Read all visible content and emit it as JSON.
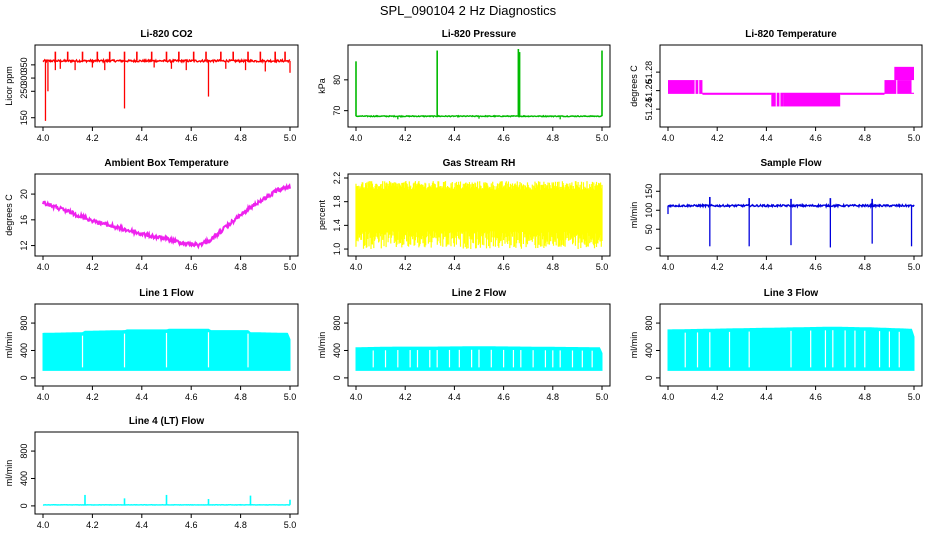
{
  "title": "SPL_090104  2 Hz Diagnostics",
  "chart_data": [
    {
      "type": "line",
      "title": "Li-820 CO2",
      "ylabel": "Licor ppm",
      "color": "#ff0000",
      "xlim": [
        4.0,
        5.0
      ],
      "ylim": [
        130,
        410
      ],
      "xticks": [
        "4.0",
        "4.2",
        "4.4",
        "4.6",
        "4.8",
        "5.0"
      ],
      "yticks": [
        "150",
        "250",
        "300",
        "350"
      ],
      "series": [
        {
          "pattern": "spikes",
          "baseline": 365,
          "noise": 8,
          "up": [
            [
              4.05,
              400
            ],
            [
              4.1,
              400
            ],
            [
              4.16,
              400
            ],
            [
              4.22,
              400
            ],
            [
              4.27,
              400
            ],
            [
              4.33,
              400
            ],
            [
              4.38,
              400
            ],
            [
              4.44,
              400
            ],
            [
              4.5,
              400
            ],
            [
              4.55,
              400
            ],
            [
              4.61,
              400
            ],
            [
              4.66,
              400
            ],
            [
              4.72,
              400
            ],
            [
              4.77,
              400
            ],
            [
              4.83,
              400
            ],
            [
              4.88,
              400
            ],
            [
              4.94,
              400
            ],
            [
              4.98,
              400
            ]
          ],
          "down": [
            [
              4.01,
              138
            ],
            [
              4.02,
              250
            ],
            [
              4.05,
              330
            ],
            [
              4.07,
              335
            ],
            [
              4.13,
              330
            ],
            [
              4.2,
              340
            ],
            [
              4.25,
              330
            ],
            [
              4.33,
              185
            ],
            [
              4.45,
              340
            ],
            [
              4.52,
              335
            ],
            [
              4.58,
              330
            ],
            [
              4.67,
              230
            ],
            [
              4.74,
              335
            ],
            [
              4.82,
              330
            ],
            [
              4.9,
              325
            ],
            [
              5.0,
              320
            ]
          ]
        }
      ]
    },
    {
      "type": "line",
      "title": "Li-820 Pressure",
      "ylabel": "kPa",
      "color": "#00bb00",
      "xlim": [
        4.0,
        5.0
      ],
      "ylim": [
        66,
        90
      ],
      "xticks": [
        "4.0",
        "4.2",
        "4.4",
        "4.6",
        "4.8",
        "5.0"
      ],
      "yticks": [
        "70",
        "80"
      ],
      "series": [
        {
          "pattern": "spikes",
          "baseline": 68.2,
          "noise": 0.3,
          "up": [
            [
              4.0,
              86
            ],
            [
              4.33,
              89.5
            ],
            [
              4.66,
              90
            ],
            [
              4.665,
              89
            ],
            [
              5.0,
              89.5
            ]
          ],
          "down": [
            [
              4.17,
              67.2
            ],
            [
              4.5,
              67.4
            ],
            [
              4.83,
              67.2
            ]
          ]
        }
      ]
    },
    {
      "type": "line",
      "title": "Li-820 Temperature",
      "ylabel": "degrees C",
      "color": "#ff00ff",
      "xlim": [
        4.0,
        5.0
      ],
      "ylim": [
        51.225,
        51.305
      ],
      "xticks": [
        "4.0",
        "4.2",
        "4.4",
        "4.6",
        "4.8",
        "5.0"
      ],
      "yticks": [
        "51.24",
        "51.26",
        "51.28"
      ],
      "series": [
        {
          "pattern": "levels",
          "base": 51.2571,
          "blocks": [
            [
              4.0,
              4.14,
              51.2571,
              51.2714
            ],
            [
              4.14,
              4.42,
              51.2571,
              51.2571
            ],
            [
              4.42,
              4.47,
              51.2429,
              51.2571
            ],
            [
              4.47,
              4.7,
              51.2429,
              51.2571
            ],
            [
              4.7,
              4.88,
              51.2571,
              51.2571
            ],
            [
              4.88,
              4.99,
              51.2571,
              51.2714
            ],
            [
              4.92,
              5.0,
              51.2714,
              51.2857
            ]
          ]
        }
      ]
    },
    {
      "type": "line",
      "title": "Ambient Box Temperature",
      "ylabel": "degrees C",
      "color": "#ee22ee",
      "xlim": [
        4.0,
        5.0
      ],
      "ylim": [
        11,
        22.5
      ],
      "xticks": [
        "4.0",
        "4.2",
        "4.4",
        "4.6",
        "4.8",
        "5.0"
      ],
      "yticks": [
        "12",
        "16",
        "20"
      ],
      "series": [
        {
          "pattern": "curve",
          "noise": 0.6,
          "points": [
            [
              4.0,
              19.0
            ],
            [
              4.1,
              17.6
            ],
            [
              4.2,
              16.2
            ],
            [
              4.3,
              15.1
            ],
            [
              4.4,
              14.1
            ],
            [
              4.5,
              13.3
            ],
            [
              4.58,
              12.6
            ],
            [
              4.63,
              12.4
            ],
            [
              4.68,
              13.2
            ],
            [
              4.75,
              15.5
            ],
            [
              4.85,
              18.5
            ],
            [
              4.95,
              20.9
            ],
            [
              5.0,
              21.4
            ]
          ]
        }
      ]
    },
    {
      "type": "line",
      "title": "Gas Stream RH",
      "ylabel": "percent",
      "color": "#ffff00",
      "xlim": [
        4.0,
        5.0
      ],
      "ylim": [
        0.95,
        2.2
      ],
      "xticks": [
        "4.0",
        "4.2",
        "4.4",
        "4.6",
        "4.8",
        "5.0"
      ],
      "yticks": [
        "1.0",
        "1.4",
        "1.8",
        "2.2"
      ],
      "series": [
        {
          "pattern": "band",
          "min": 1.0,
          "max": 2.15,
          "core": [
            1.3,
            2.0
          ]
        }
      ]
    },
    {
      "type": "line",
      "title": "Sample Flow",
      "ylabel": "ml/min",
      "color": "#0000dd",
      "xlim": [
        4.0,
        5.0
      ],
      "ylim": [
        -10,
        185
      ],
      "xticks": [
        "4.0",
        "4.2",
        "4.4",
        "4.6",
        "4.8",
        "5.0"
      ],
      "yticks": [
        "0",
        "50",
        "100",
        "150"
      ],
      "series": [
        {
          "pattern": "spikes",
          "baseline": 112,
          "noise": 5,
          "up": [
            [
              4.17,
              135
            ],
            [
              4.33,
              132
            ],
            [
              4.5,
              130
            ],
            [
              4.66,
              132
            ],
            [
              4.83,
              130
            ]
          ],
          "down": [
            [
              4.0,
              90
            ],
            [
              4.17,
              5
            ],
            [
              4.33,
              5
            ],
            [
              4.5,
              8
            ],
            [
              4.66,
              2
            ],
            [
              4.83,
              12
            ],
            [
              4.99,
              5
            ]
          ]
        }
      ]
    },
    {
      "type": "line",
      "title": "Line 1 Flow",
      "ylabel": "ml/min",
      "color": "#00ffff",
      "xlim": [
        4.0,
        5.0
      ],
      "ylim": [
        -60,
        1020
      ],
      "xticks": [
        "4.0",
        "4.2",
        "4.4",
        "4.6",
        "4.8",
        "5.0"
      ],
      "yticks": [
        "0",
        "400",
        "800"
      ],
      "series": [
        {
          "pattern": "fillband",
          "low": 110,
          "top": [
            [
              4.0,
              650
            ],
            [
              4.16,
              660
            ],
            [
              4.17,
              680
            ],
            [
              4.33,
              690
            ],
            [
              4.34,
              700
            ],
            [
              4.5,
              700
            ],
            [
              4.51,
              710
            ],
            [
              4.67,
              710
            ],
            [
              4.68,
              690
            ],
            [
              4.83,
              690
            ],
            [
              4.84,
              660
            ],
            [
              4.99,
              650
            ],
            [
              5.0,
              560
            ]
          ],
          "gaps": [
            4.16,
            4.33,
            4.5,
            4.67,
            4.83
          ]
        }
      ]
    },
    {
      "type": "line",
      "title": "Line 2 Flow",
      "ylabel": "ml/min",
      "color": "#00ffff",
      "xlim": [
        4.0,
        5.0
      ],
      "ylim": [
        -60,
        1020
      ],
      "xticks": [
        "4.0",
        "4.2",
        "4.4",
        "4.6",
        "4.8",
        "5.0"
      ],
      "yticks": [
        "0",
        "400",
        "800"
      ],
      "series": [
        {
          "pattern": "fillband",
          "low": 110,
          "top": [
            [
              4.0,
              440
            ],
            [
              4.17,
              450
            ],
            [
              4.33,
              450
            ],
            [
              4.5,
              455
            ],
            [
              4.67,
              450
            ],
            [
              4.83,
              445
            ],
            [
              4.99,
              440
            ],
            [
              5.0,
              360
            ]
          ],
          "gaps": [
            4.07,
            4.12,
            4.17,
            4.22,
            4.25,
            4.3,
            4.33,
            4.38,
            4.42,
            4.47,
            4.5,
            4.55,
            4.6,
            4.64,
            4.67,
            4.72,
            4.77,
            4.8,
            4.83,
            4.88,
            4.92,
            4.96
          ]
        }
      ]
    },
    {
      "type": "line",
      "title": "Line 3 Flow",
      "ylabel": "ml/min",
      "color": "#00ffff",
      "xlim": [
        4.0,
        5.0
      ],
      "ylim": [
        -60,
        1020
      ],
      "xticks": [
        "4.0",
        "4.2",
        "4.4",
        "4.6",
        "4.8",
        "5.0"
      ],
      "yticks": [
        "0",
        "400",
        "800"
      ],
      "series": [
        {
          "pattern": "fillband",
          "low": 110,
          "top": [
            [
              4.0,
              700
            ],
            [
              4.17,
              710
            ],
            [
              4.33,
              720
            ],
            [
              4.5,
              730
            ],
            [
              4.67,
              740
            ],
            [
              4.83,
              730
            ],
            [
              4.99,
              710
            ],
            [
              5.0,
              600
            ]
          ],
          "gaps": [
            4.07,
            4.12,
            4.17,
            4.25,
            4.33,
            4.5,
            4.58,
            4.64,
            4.67,
            4.72,
            4.76,
            4.8,
            4.86,
            4.9,
            4.94
          ]
        }
      ]
    },
    {
      "type": "line",
      "title": "Line 4 (LT) Flow",
      "ylabel": "ml/min",
      "color": "#00ffff",
      "xlim": [
        4.0,
        5.0
      ],
      "ylim": [
        -60,
        1020
      ],
      "xticks": [
        "4.0",
        "4.2",
        "4.4",
        "4.6",
        "4.8",
        "5.0"
      ],
      "yticks": [
        "0",
        "400",
        "800"
      ],
      "series": [
        {
          "pattern": "spikes",
          "baseline": 15,
          "noise": 4,
          "up": [
            [
              4.17,
              160
            ],
            [
              4.33,
              110
            ],
            [
              4.5,
              160
            ],
            [
              4.67,
              100
            ],
            [
              4.84,
              150
            ],
            [
              5.0,
              90
            ]
          ],
          "down": []
        }
      ]
    }
  ]
}
